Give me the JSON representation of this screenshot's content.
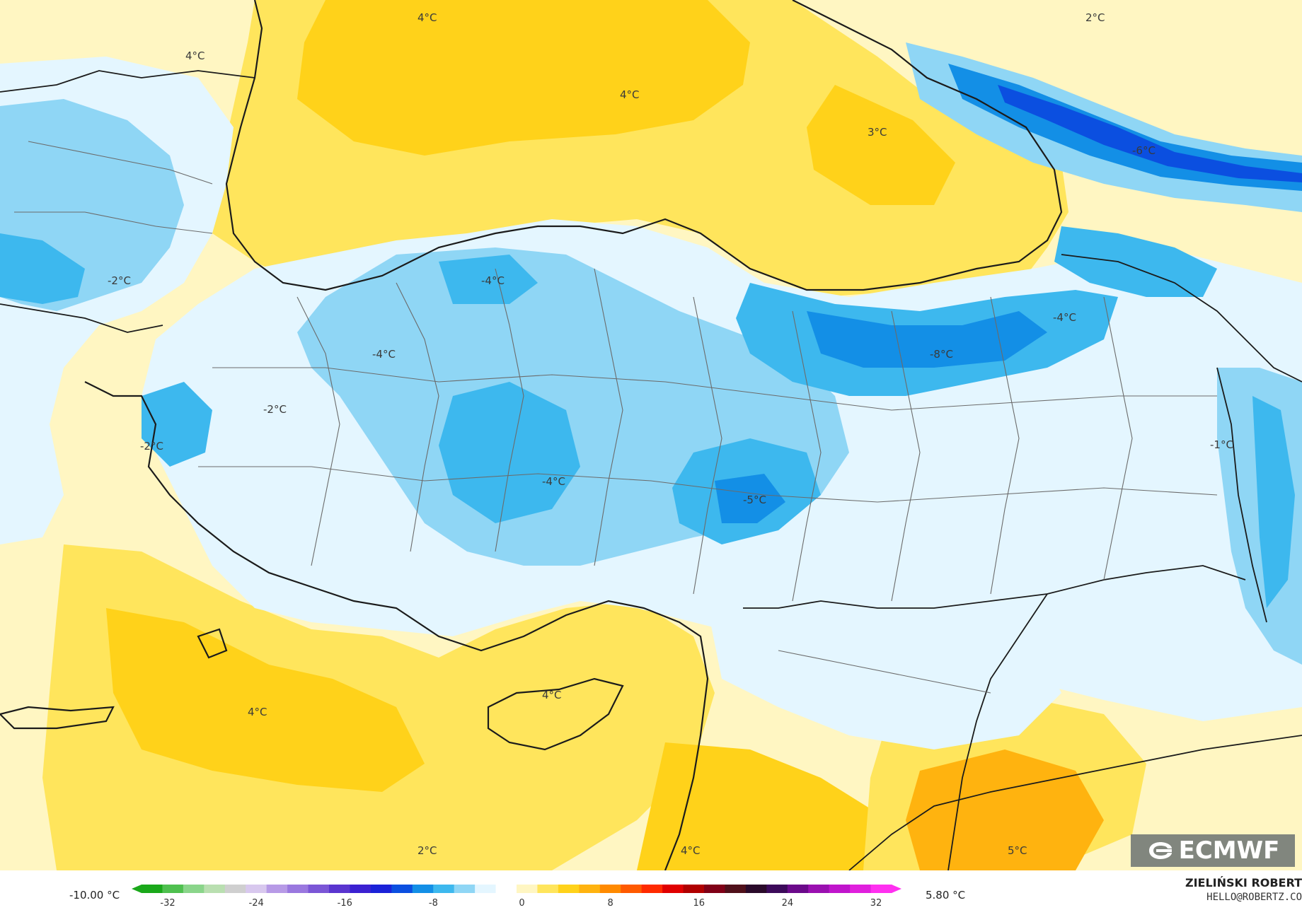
{
  "map": {
    "variable_unit": "°C",
    "isotherm_labels": [
      {
        "id": "black-sea-west",
        "text": "4°C"
      },
      {
        "id": "balkans-north",
        "text": "4°C"
      },
      {
        "id": "black-sea-center",
        "text": "4°C"
      },
      {
        "id": "black-sea-east",
        "text": "3°C"
      },
      {
        "id": "caucasus-north",
        "text": "2°C"
      },
      {
        "id": "caucasus-cold",
        "text": "-6°C"
      },
      {
        "id": "thrace",
        "text": "-2°C"
      },
      {
        "id": "north-anatolia",
        "text": "-4°C"
      },
      {
        "id": "marmara-south",
        "text": "-4°C"
      },
      {
        "id": "aegean-inland",
        "text": "-2°C"
      },
      {
        "id": "aegean-coast",
        "text": "-2°C"
      },
      {
        "id": "central-anatolia",
        "text": "-4°C"
      },
      {
        "id": "southeast-cold",
        "text": "-5°C"
      },
      {
        "id": "northeast-cold",
        "text": "-4°C"
      },
      {
        "id": "erzurum",
        "text": "-8°C"
      },
      {
        "id": "iran-border",
        "text": "-1°C"
      },
      {
        "id": "mediterranean-west",
        "text": "4°C"
      },
      {
        "id": "cyprus",
        "text": "4°C"
      },
      {
        "id": "libya-sea",
        "text": "2°C"
      },
      {
        "id": "levant",
        "text": "4°C"
      },
      {
        "id": "iraq",
        "text": "5°C"
      }
    ],
    "colors": {
      "warm_light": "#fff6c2",
      "warm": "#ffe55c",
      "warm_strong": "#ffd21a",
      "warm_orange": "#ffb30f",
      "neutral": "#ffffff",
      "cold_light": "#e4f6ff",
      "cold": "#8fd6f5",
      "cold_mid": "#3db8ee",
      "cold_strong": "#138fe6",
      "cold_deep": "#0b4fe0",
      "border": "#1b1b1b",
      "admin_border": "#6b6b6b"
    }
  },
  "colorbar": {
    "min_label": "-10.00 °C",
    "max_label": "5.80 °C",
    "ticks": [
      "-32",
      "-24",
      "-16",
      "-8",
      "0",
      "8",
      "16",
      "24",
      "32"
    ],
    "colors": [
      "#1aa81a",
      "#4fc04f",
      "#8ad58a",
      "#b9dfb0",
      "#cfcfcf",
      "#d8c8ee",
      "#b79ae6",
      "#9a78df",
      "#7b56d6",
      "#5a35cf",
      "#3b21d1",
      "#1b22d8",
      "#0b4fe0",
      "#138fe6",
      "#3db8ee",
      "#8fd6f5",
      "#e4f6ff",
      "#ffffff",
      "#fff6c2",
      "#ffe55c",
      "#ffd21a",
      "#ffb30f",
      "#ff8a00",
      "#ff5a00",
      "#ff2a00",
      "#e00000",
      "#b00000",
      "#800016",
      "#50101a",
      "#2a0a2a",
      "#3c0a5a",
      "#6b0a8a",
      "#9a10b0",
      "#c015cc",
      "#e020dd",
      "#ff30f0"
    ]
  },
  "logo": {
    "text": "ECMWF"
  },
  "author": {
    "name": "ZIELIŃSKI ROBERT",
    "email": "HELLO@ROBERTZ.CO"
  }
}
